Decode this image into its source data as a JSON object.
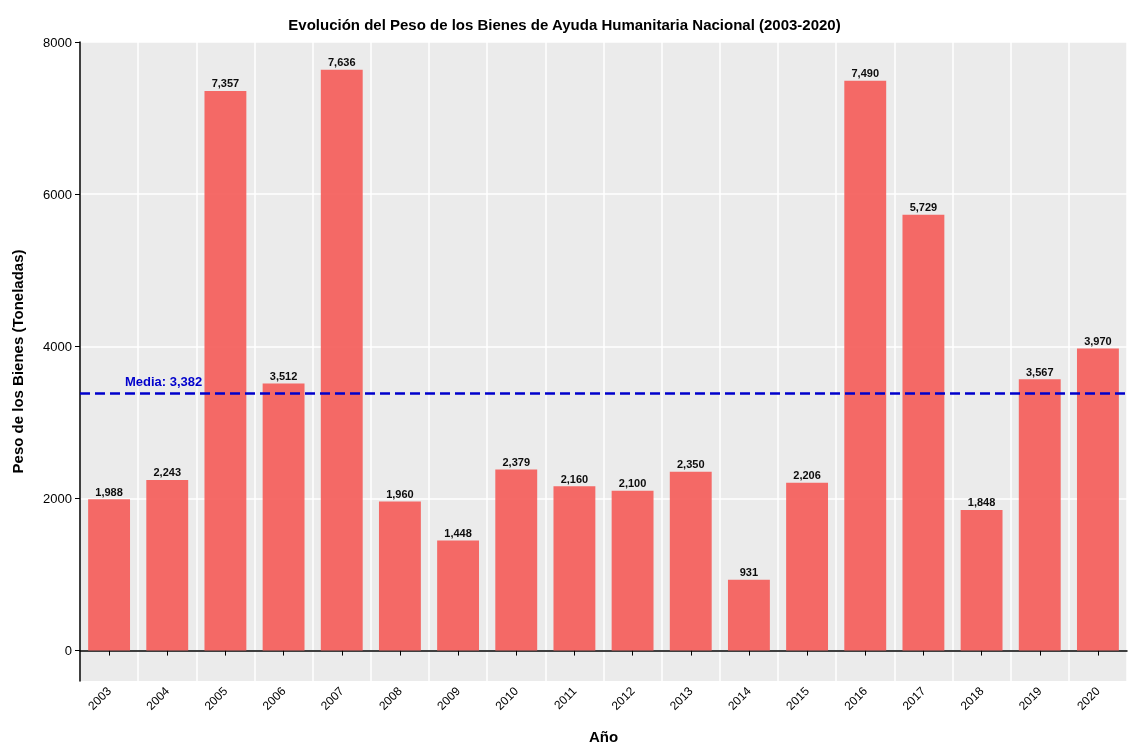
{
  "chart_data": {
    "type": "bar",
    "title": "Evolución del Peso de los Bienes de Ayuda Humanitaria Nacional (2003-2020)",
    "xlabel": "Año",
    "ylabel": "Peso de los Bienes (Toneladas)",
    "categories": [
      "2003",
      "2004",
      "2005",
      "2006",
      "2007",
      "2008",
      "2009",
      "2010",
      "2011",
      "2012",
      "2013",
      "2014",
      "2015",
      "2016",
      "2017",
      "2018",
      "2019",
      "2020"
    ],
    "values": [
      1988,
      2243,
      7357,
      3512,
      7636,
      1960,
      1448,
      2379,
      2160,
      2100,
      2350,
      931,
      2206,
      7490,
      5729,
      1848,
      3567,
      3970
    ],
    "value_labels": [
      "1,988",
      "2,243",
      "7,357",
      "3,512",
      "7,636",
      "1,960",
      "1,448",
      "2,379",
      "2,160",
      "2,100",
      "2,350",
      "931",
      "2,206",
      "7,490",
      "5,729",
      "1,848",
      "3,567",
      "3,970"
    ],
    "color": "#f4625f",
    "ylim": [
      -400,
      8000
    ],
    "yticks": [
      0,
      2000,
      4000,
      6000,
      8000
    ],
    "ref_lines": [
      {
        "axis": "y",
        "value": 3382,
        "label": "Media: 3,382",
        "color": "#0000cc",
        "line_style": "dashed"
      }
    ],
    "grid": true
  }
}
